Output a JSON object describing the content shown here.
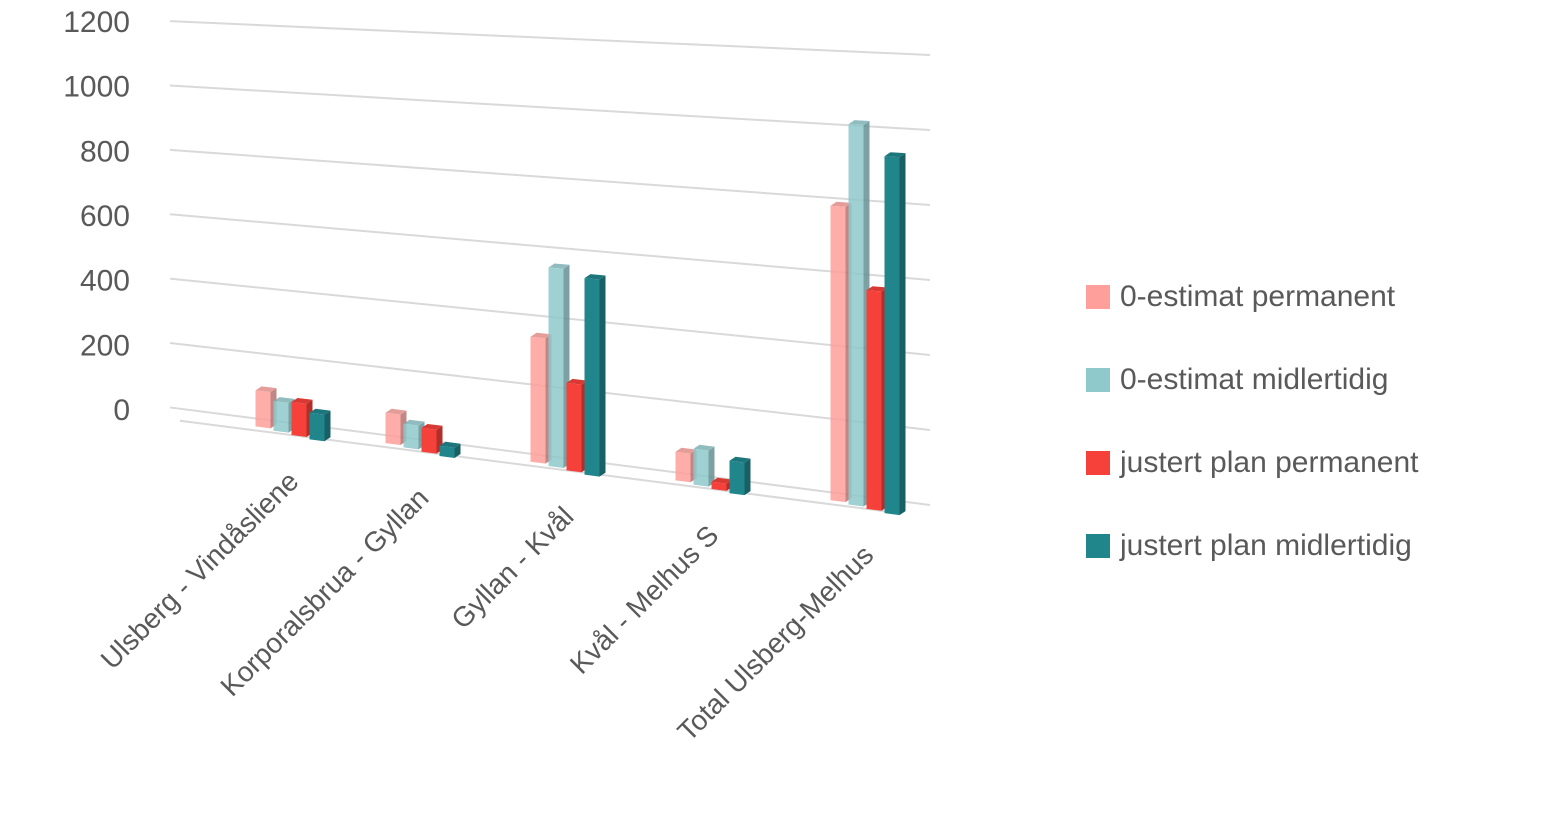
{
  "chart_data": {
    "type": "bar",
    "categories": [
      "Ulsberg - Vindåsliene",
      "Korporalsbrua - Gyllan",
      "Gyllan - Kvål",
      "Kvål - Melhus S",
      "Total Ulsberg-Melhus"
    ],
    "series": [
      {
        "name": "0-estimat permanent",
        "color": "#ff9f9b",
        "values": [
          110,
          90,
          360,
          80,
          800
        ]
      },
      {
        "name": "0-estimat midlertidig",
        "color": "#8fc9cc",
        "values": [
          90,
          70,
          570,
          100,
          1030
        ]
      },
      {
        "name": "justert plan permanent",
        "color": "#f5413a",
        "values": [
          100,
          70,
          250,
          20,
          590
        ]
      },
      {
        "name": "justert plan midlertidig",
        "color": "#21868c",
        "values": [
          80,
          30,
          560,
          90,
          960
        ]
      }
    ],
    "ylim": [
      0,
      1200
    ],
    "yticks": [
      0,
      200,
      400,
      600,
      800,
      1000,
      1200
    ],
    "grid": true,
    "legend": "right"
  }
}
